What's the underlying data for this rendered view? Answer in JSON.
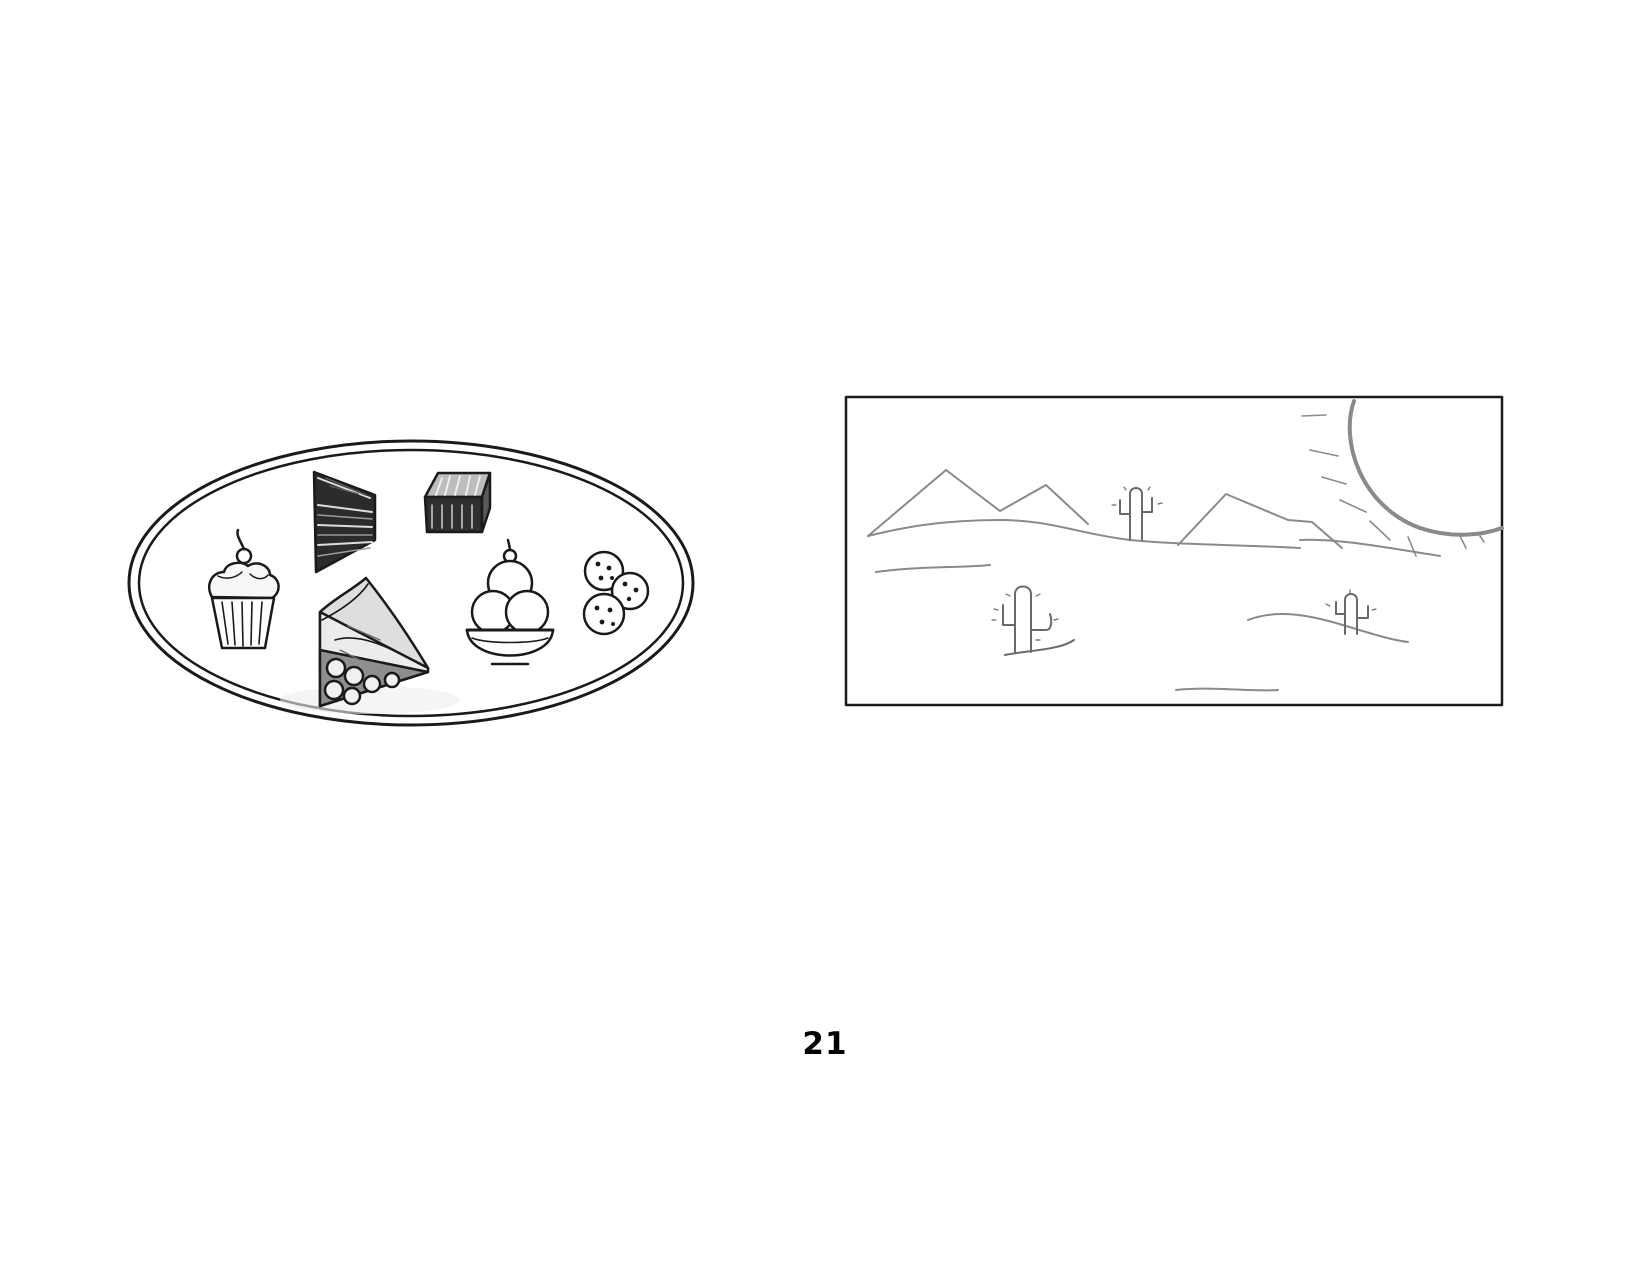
{
  "page": {
    "number": "21"
  },
  "illustrations": {
    "dessert_plate": {
      "items": [
        "cupcake-icon",
        "layer-cake-slice-icon",
        "brownie-icon",
        "pie-slice-icon",
        "ice-cream-bowl-icon",
        "cookies-icon"
      ]
    },
    "desert_scene": {
      "items": [
        "mountains-icon",
        "cactus-icon",
        "sun-icon"
      ]
    }
  },
  "colors": {
    "ink": "#1a1a1a",
    "pencil": "#8a8a8a",
    "background": "#ffffff"
  }
}
